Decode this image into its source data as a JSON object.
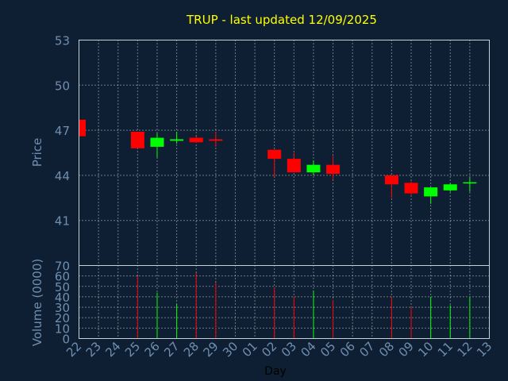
{
  "colors": {
    "background": "#0f1f33",
    "title": "#ffff00",
    "axis_text": "#6f8fb0",
    "up": "#00ff00",
    "down": "#ff0000",
    "grid": "#c8d0d8"
  },
  "chart_data": {
    "type": "candlestick",
    "title": "TRUP - last updated 12/09/2025",
    "xlabel": "Day",
    "price_ylabel": "Price",
    "volume_ylabel": "Volume (0000)",
    "price_ylim": [
      38,
      53
    ],
    "price_ticks": [
      41,
      44,
      47,
      50,
      53
    ],
    "volume_ylim": [
      0,
      70
    ],
    "volume_ticks": [
      0,
      10,
      20,
      30,
      40,
      50,
      60,
      70
    ],
    "x_tick_labels": [
      "22",
      "23",
      "24",
      "25",
      "26",
      "27",
      "28",
      "29",
      "30",
      "01",
      "02",
      "03",
      "04",
      "05",
      "06",
      "07",
      "08",
      "09",
      "10",
      "11",
      "12",
      "13"
    ],
    "grid": true,
    "candles": [
      {
        "day_index": 0,
        "open": 47.7,
        "close": 46.6,
        "high": 47.7,
        "low": 46.6,
        "volume": 0
      },
      {
        "day_index": 3,
        "open": 46.9,
        "close": 45.8,
        "high": 46.9,
        "low": 45.8,
        "volume": 60
      },
      {
        "day_index": 4,
        "open": 45.9,
        "close": 46.5,
        "high": 46.8,
        "low": 45.2,
        "volume": 44
      },
      {
        "day_index": 5,
        "open": 46.3,
        "close": 46.4,
        "high": 46.9,
        "low": 46.1,
        "volume": 33
      },
      {
        "day_index": 6,
        "open": 46.5,
        "close": 46.2,
        "high": 46.6,
        "low": 46.2,
        "volume": 63
      },
      {
        "day_index": 7,
        "open": 46.4,
        "close": 46.3,
        "high": 46.9,
        "low": 45.9,
        "volume": 54
      },
      {
        "day_index": 10,
        "open": 45.7,
        "close": 45.1,
        "high": 45.7,
        "low": 43.9,
        "volume": 49
      },
      {
        "day_index": 11,
        "open": 45.1,
        "close": 44.2,
        "high": 45.5,
        "low": 44.2,
        "volume": 40
      },
      {
        "day_index": 12,
        "open": 44.2,
        "close": 44.7,
        "high": 45.0,
        "low": 44.0,
        "volume": 46
      },
      {
        "day_index": 13,
        "open": 44.7,
        "close": 44.1,
        "high": 45.3,
        "low": 43.7,
        "volume": 37
      },
      {
        "day_index": 16,
        "open": 44.0,
        "close": 43.4,
        "high": 44.0,
        "low": 42.5,
        "volume": 40
      },
      {
        "day_index": 17,
        "open": 43.5,
        "close": 42.8,
        "high": 43.6,
        "low": 42.7,
        "volume": 30
      },
      {
        "day_index": 18,
        "open": 42.6,
        "close": 43.2,
        "high": 43.2,
        "low": 42.1,
        "volume": 40
      },
      {
        "day_index": 19,
        "open": 43.0,
        "close": 43.4,
        "high": 43.5,
        "low": 42.9,
        "volume": 32
      },
      {
        "day_index": 20,
        "open": 43.5,
        "close": 43.5,
        "high": 43.9,
        "low": 42.9,
        "volume": 40
      }
    ]
  }
}
